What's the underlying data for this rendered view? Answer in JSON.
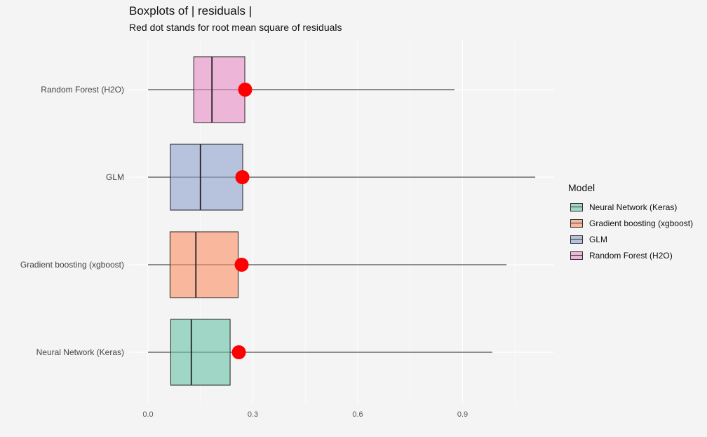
{
  "chart_data": {
    "type": "boxplot",
    "title": "Boxplots of | residuals |",
    "subtitle": "Red dot stands for root mean square of residuals",
    "xlabel": "",
    "ylabel": "",
    "xlim": [
      -0.05,
      1.16
    ],
    "x_ticks": [
      0.0,
      0.3,
      0.6,
      0.9
    ],
    "x_tick_labels": [
      "0.0",
      "0.3",
      "0.6",
      "0.9"
    ],
    "categories": [
      "Random Forest (H2O)",
      "GLM",
      "Gradient boosting (xgboost)",
      "Neural Network (Keras)"
    ],
    "series": [
      {
        "name": "Random Forest (H2O)",
        "color": "#e78ac3",
        "min": 0.0,
        "q1": 0.131,
        "median": 0.183,
        "q3": 0.277,
        "max": 0.877,
        "rmse": 0.278
      },
      {
        "name": "GLM",
        "color": "#8da0cb",
        "min": 0.0,
        "q1": 0.064,
        "median": 0.15,
        "q3": 0.271,
        "max": 1.108,
        "rmse": 0.27
      },
      {
        "name": "Gradient boosting (xgboost)",
        "color": "#fc8d62",
        "min": 0.0,
        "q1": 0.063,
        "median": 0.137,
        "q3": 0.258,
        "max": 1.026,
        "rmse": 0.268
      },
      {
        "name": "Neural Network (Keras)",
        "color": "#66c2a5",
        "min": 0.0,
        "q1": 0.065,
        "median": 0.124,
        "q3": 0.235,
        "max": 0.985,
        "rmse": 0.26
      }
    ],
    "rmse_marker_color": "#ff0000",
    "grid": true,
    "legend": {
      "title": "Model",
      "placement": "right",
      "entries": [
        "Neural Network (Keras)",
        "Gradient boosting (xgboost)",
        "GLM",
        "Random Forest (H2O)"
      ]
    }
  }
}
